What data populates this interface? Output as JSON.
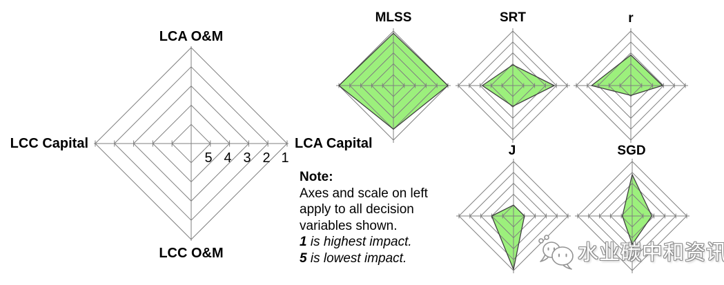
{
  "figure": {
    "description": "Radar (spider) charts showing impact of decision variables on LCA/LCC cost criteria",
    "background": "#ffffff"
  },
  "colors": {
    "grid_line": "#7f7f7f",
    "series_fill": "#9cf07c",
    "series_outline": "#3f3f3f",
    "text": "#000000",
    "watermark_fill": "#ffffff",
    "watermark_outline": "#8a8a8a"
  },
  "note": {
    "heading": "Note:",
    "body_lines": [
      "Axes and scale on left",
      "apply to all decision",
      "variables shown."
    ],
    "emphasis_lines": [
      {
        "value": "1",
        "text": " is highest impact."
      },
      {
        "value": "5",
        "text": " is lowest impact."
      }
    ]
  },
  "watermark": {
    "text": "水业碳中和资讯",
    "logo": "chat-bubbles-icon"
  },
  "chart_data": [
    {
      "type": "radar",
      "role": "axes-and-scale-template",
      "title": "",
      "axes": [
        "LCA O&M",
        "LCA Capital",
        "LCC O&M",
        "LCC Capital"
      ],
      "scale_labels": [
        "5",
        "4",
        "3",
        "2",
        "1"
      ],
      "scale": {
        "outer_value": 1,
        "inner_value": 5,
        "rings": 5,
        "note": "1 at outer ring = highest impact; 5 at innermost ring = lowest impact"
      },
      "values": null,
      "grid": true,
      "legend": false
    },
    {
      "type": "radar",
      "title": "MLSS",
      "axes": [
        "LCA O&M",
        "LCA Capital",
        "LCC O&M",
        "LCC Capital"
      ],
      "values": {
        "LCA O&M": 1.2,
        "LCA Capital": 1.0,
        "LCC O&M": 2.0,
        "LCC Capital": 1.0
      }
    },
    {
      "type": "radar",
      "title": "SRT",
      "axes": [
        "LCA O&M",
        "LCA Capital",
        "LCC O&M",
        "LCC Capital"
      ],
      "values": {
        "LCA O&M": 4.1,
        "LCA Capital": 2.2,
        "LCC O&M": 4.1,
        "LCC Capital": 3.2
      }
    },
    {
      "type": "radar",
      "title": "r",
      "axes": [
        "LCA O&M",
        "LCA Capital",
        "LCC O&M",
        "LCC Capital"
      ],
      "values": {
        "LCA O&M": 3.2,
        "LCA Capital": 3.1,
        "LCC O&M": 5.1,
        "LCC Capital": 2.4
      }
    },
    {
      "type": "radar",
      "title": "J",
      "axes": [
        "LCA O&M",
        "LCA Capital",
        "LCC O&M",
        "LCC Capital"
      ],
      "values": {
        "LCA O&M": 5.0,
        "LCA Capital": 5.0,
        "LCC O&M": 1.1,
        "LCC Capital": 4.0
      }
    },
    {
      "type": "radar",
      "title": "SGD",
      "axes": [
        "LCA O&M",
        "LCA Capital",
        "LCC O&M",
        "LCC Capital"
      ],
      "values": {
        "LCA O&M": 2.2,
        "LCA Capital": 4.2,
        "LCC O&M": 3.4,
        "LCC Capital": 5.1
      }
    }
  ]
}
